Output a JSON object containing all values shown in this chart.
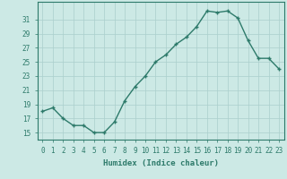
{
  "x": [
    0,
    1,
    2,
    3,
    4,
    5,
    6,
    7,
    8,
    9,
    10,
    11,
    12,
    13,
    14,
    15,
    16,
    17,
    18,
    19,
    20,
    21,
    22,
    23
  ],
  "y": [
    18.0,
    18.5,
    17.0,
    16.0,
    16.0,
    15.0,
    15.0,
    16.5,
    19.5,
    21.5,
    23.0,
    25.0,
    26.0,
    27.5,
    28.5,
    30.0,
    32.2,
    32.0,
    32.2,
    31.2,
    28.0,
    25.5,
    25.5,
    24.0
  ],
  "line_color": "#2d7a6a",
  "marker": "+",
  "marker_size": 3,
  "bg_color": "#cce9e5",
  "grid_color": "#aacfcc",
  "xlabel": "Humidex (Indice chaleur)",
  "xlim": [
    -0.5,
    23.5
  ],
  "ylim": [
    14,
    33.5
  ],
  "yticks": [
    15,
    17,
    19,
    21,
    23,
    25,
    27,
    29,
    31
  ],
  "xticks": [
    0,
    1,
    2,
    3,
    4,
    5,
    6,
    7,
    8,
    9,
    10,
    11,
    12,
    13,
    14,
    15,
    16,
    17,
    18,
    19,
    20,
    21,
    22,
    23
  ],
  "tick_label_size": 5.5,
  "xlabel_size": 6.5,
  "line_width": 1.0
}
